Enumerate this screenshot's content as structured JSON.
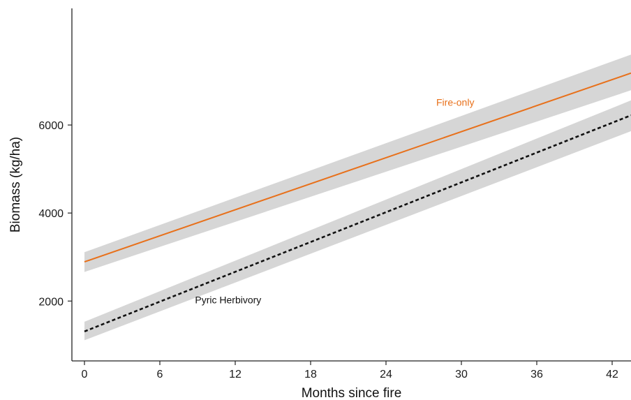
{
  "chart_data": {
    "type": "line",
    "title": "",
    "xlabel": "Months since fire",
    "ylabel": "Biomass (kg/ha)",
    "xlim": [
      -1.0,
      43.5
    ],
    "ylim": [
      640,
      8650
    ],
    "x_ticks": [
      0,
      6,
      12,
      18,
      24,
      30,
      36,
      42
    ],
    "y_ticks": [
      2000,
      4000,
      6000
    ],
    "grid": false,
    "legend": "none (direct labels)",
    "series": [
      {
        "name": "Fire-only",
        "color": "#e8701a",
        "line_style": "solid",
        "x": [
          0,
          43.5
        ],
        "y": [
          2890,
          7180
        ],
        "ci_lower": [
          2660,
          6790
        ],
        "ci_upper": [
          3110,
          7600
        ]
      },
      {
        "name": "Pyric Herbivory",
        "color": "#111111",
        "line_style": "dashed",
        "x": [
          0,
          43.5
        ],
        "y": [
          1310,
          6220
        ],
        "ci_lower": [
          1110,
          5860
        ],
        "ci_upper": [
          1530,
          6560
        ]
      }
    ],
    "annotations": [
      {
        "text": "Fire-only",
        "x": 28,
        "y": 6440,
        "color": "#e8701a"
      },
      {
        "text": "Pyric Herbivory",
        "x": 8.8,
        "y": 1950,
        "color": "#111111"
      }
    ],
    "ci_color": "#d6d6d6"
  }
}
